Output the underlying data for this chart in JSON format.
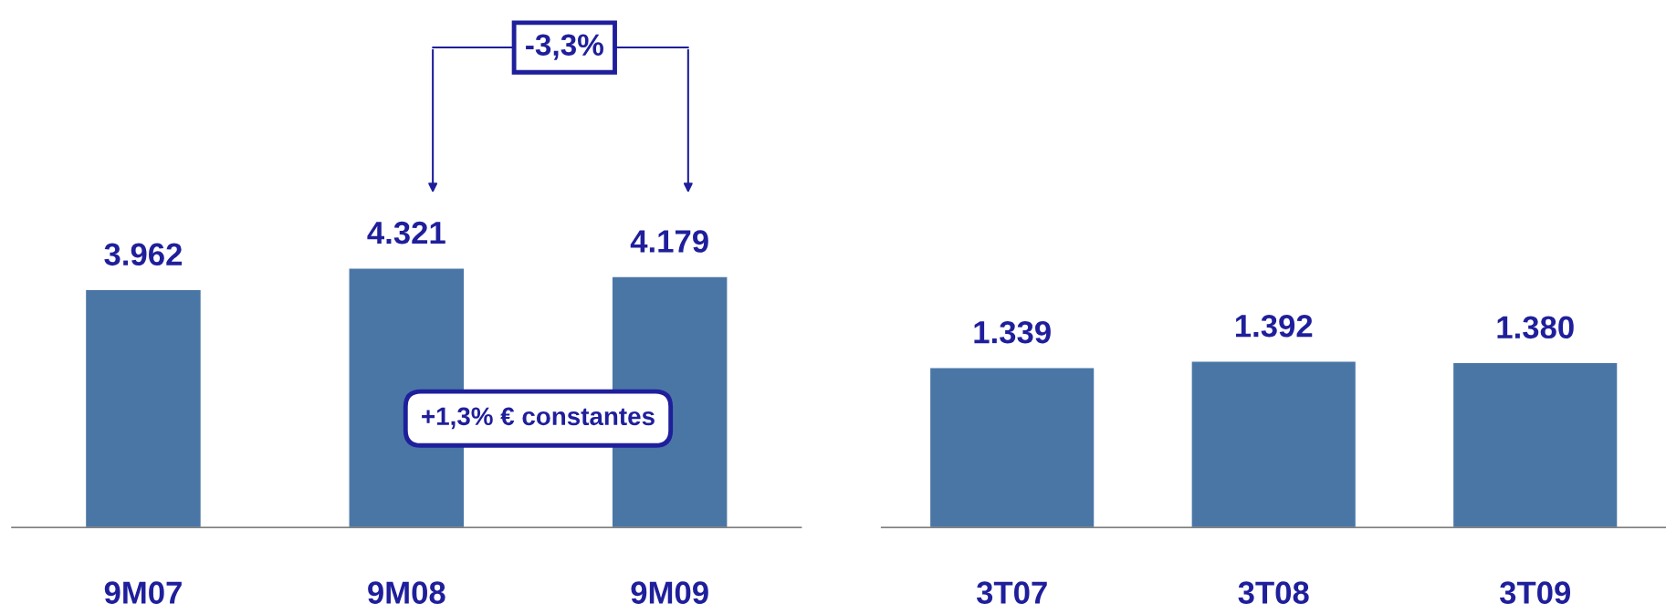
{
  "chart_data": [
    {
      "type": "bar",
      "categories": [
        "9M07",
        "9M08",
        "9M09"
      ],
      "values": [
        3962,
        4321,
        4179
      ],
      "color": "#4a76a6",
      "data_labels": true,
      "value_labels": [
        "3.962",
        "4.321",
        "4.179"
      ],
      "annotations": [
        "-3,3%",
        "+1,3% € constantes"
      ],
      "grid": false,
      "legend": false
    },
    {
      "type": "bar",
      "categories": [
        "3T07",
        "3T08",
        "3T09"
      ],
      "values": [
        1339,
        1392,
        1380
      ],
      "color": "#4a76a6",
      "data_labels": true,
      "value_labels": [
        "1.339",
        "1.392",
        "1.380"
      ],
      "grid": false,
      "legend": false
    }
  ]
}
